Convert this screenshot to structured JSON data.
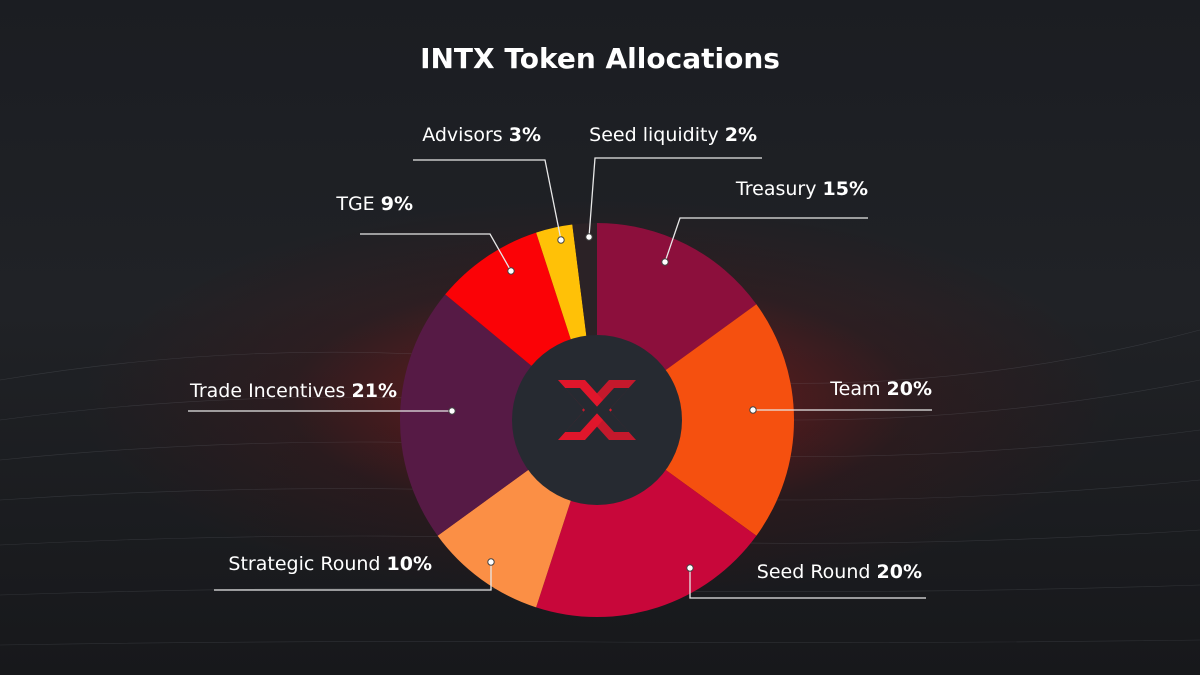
{
  "chart_data": {
    "type": "pie",
    "title": "INTX Token Allocations",
    "categories": [
      "Treasury",
      "Team",
      "Seed Round",
      "Strategic Round",
      "Trade Incentives",
      "TGE",
      "Advisors",
      "Seed liquidity"
    ],
    "values": [
      15,
      20,
      20,
      10,
      21,
      9,
      3,
      2
    ],
    "value_labels": [
      "15%",
      "20%",
      "20%",
      "10%",
      "21%",
      "9%",
      "3%",
      "2%"
    ],
    "colors": [
      "#8c0f3c",
      "#f5500f",
      "#c8073a",
      "#fb8f45",
      "#561a45",
      "#fb0206",
      "#ffc107",
      "#2b2226"
    ]
  }
}
